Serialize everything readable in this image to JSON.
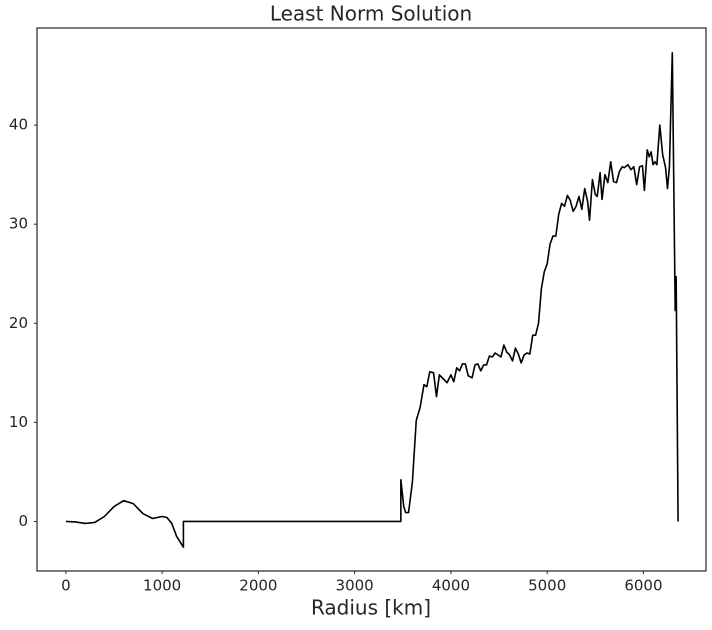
{
  "chart_data": {
    "type": "line",
    "title": "Least Norm Solution",
    "xlabel": "Radius [km]",
    "x": [
      0,
      100,
      200,
      300,
      400,
      500,
      600,
      700,
      800,
      900,
      1000,
      1050,
      1100,
      1150,
      1221,
      1221,
      3480,
      3480,
      3510,
      3530,
      3560,
      3600,
      3640,
      3680,
      3720,
      3750,
      3780,
      3820,
      3850,
      3880,
      3920,
      3960,
      4000,
      4030,
      4060,
      4090,
      4120,
      4150,
      4180,
      4220,
      4250,
      4280,
      4310,
      4340,
      4370,
      4400,
      4430,
      4460,
      4490,
      4520,
      4550,
      4580,
      4610,
      4640,
      4670,
      4700,
      4730,
      4760,
      4790,
      4820,
      4850,
      4880,
      4910,
      4940,
      4970,
      5000,
      5030,
      5060,
      5090,
      5120,
      5150,
      5180,
      5210,
      5240,
      5270,
      5300,
      5330,
      5360,
      5390,
      5420,
      5440,
      5470,
      5500,
      5520,
      5550,
      5570,
      5600,
      5630,
      5660,
      5690,
      5720,
      5750,
      5780,
      5800,
      5840,
      5870,
      5900,
      5930,
      5960,
      5990,
      6010,
      6040,
      6060,
      6080,
      6100,
      6120,
      6140,
      6170,
      6200,
      6230,
      6250,
      6270,
      6300,
      6330,
      6340,
      6360
    ],
    "series": [
      {
        "color": "#000000",
        "values": [
          0,
          -0.05,
          -0.2,
          -0.1,
          0.5,
          1.5,
          2.1,
          1.8,
          0.8,
          0.3,
          0.5,
          0.4,
          -0.2,
          -1.5,
          -2.6,
          0,
          0,
          4.2,
          1.5,
          0.9,
          0.9,
          4,
          10.2,
          11.5,
          13.8,
          13.6,
          15.1,
          15,
          12.6,
          14.8,
          14.4,
          14,
          14.8,
          14.1,
          15.5,
          15.2,
          15.9,
          15.9,
          14.7,
          14.5,
          15.8,
          15.9,
          15.2,
          15.8,
          15.8,
          16.7,
          16.6,
          17,
          16.8,
          16.6,
          17.8,
          17.1,
          16.8,
          16.2,
          17.5,
          16.9,
          16,
          16.8,
          17,
          16.9,
          18.8,
          18.8,
          20,
          23.5,
          25.2,
          26,
          28,
          28.8,
          28.8,
          31,
          32.1,
          31.8,
          32.9,
          32.4,
          31.3,
          31.8,
          32.8,
          31.5,
          33.6,
          32.3,
          30.4,
          34.5,
          33,
          32.8,
          35.2,
          32.5,
          35,
          34.2,
          36.3,
          34.3,
          34.2,
          35.3,
          35.8,
          35.7,
          36,
          35.5,
          35.8,
          34,
          35.8,
          35.9,
          33.4,
          37.5,
          36.8,
          37.3,
          36,
          36.3,
          36,
          40,
          37,
          35.7,
          33.6,
          35.8,
          47.3,
          21.3,
          24.7,
          0
        ]
      }
    ],
    "xlim": [
      -300,
      6650
    ],
    "ylim": [
      -5,
      49.8
    ],
    "xticks": [
      0,
      1000,
      2000,
      3000,
      4000,
      5000,
      6000
    ],
    "yticks": [
      0,
      10,
      20,
      30,
      40
    ],
    "grid": false
  }
}
